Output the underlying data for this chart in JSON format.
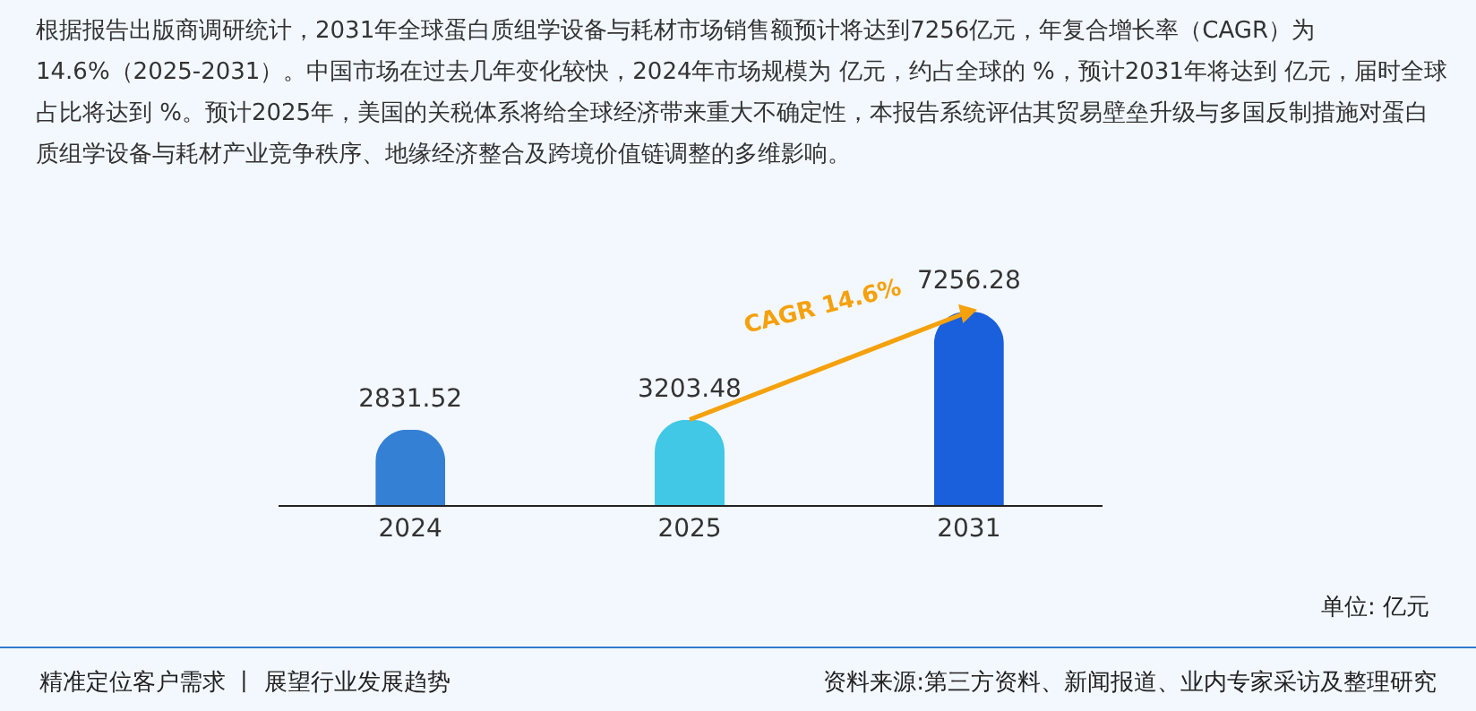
{
  "chart_data": {
    "type": "bar",
    "title": "根据报告出版商调研统计，2031年全球蛋白质组学设备与耗材市场销售额预计将达到7256亿元，年复合增长率（CAGR）为14.6%（2025-2031）。中国市场在过去几年变化较快，2024年市场规模为 亿元，约占全球的 %，预计2031年将达到 亿元，届时全球占比将达到 %。预计2025年，美国的关税体系将给全球经济带来重大不确定性，本报告系统评估其贸易壁垒升级与多国反制措施对蛋白质组学设备与耗材产业竞争秩序、地缘经济整合及跨境价值链调整的多维影响。",
    "categories": [
      "2024",
      "2025",
      "2031"
    ],
    "values": [
      2831.52,
      3203.48,
      7256.28
    ],
    "colors": [
      "#3480d4",
      "#40c8e6",
      "#1a5fdc"
    ],
    "data_labels": true,
    "tick_labels": "x",
    "annotations": [
      {
        "text": "CAGR 14.6%",
        "x": "2031",
        "y": 7256.28
      },
      "单位: 亿元",
      "精准定位客户需求 丨 展望行业发展趋势",
      "资料来源:第三方资料、新闻报道、业内专家采访及整理研究"
    ]
  }
}
